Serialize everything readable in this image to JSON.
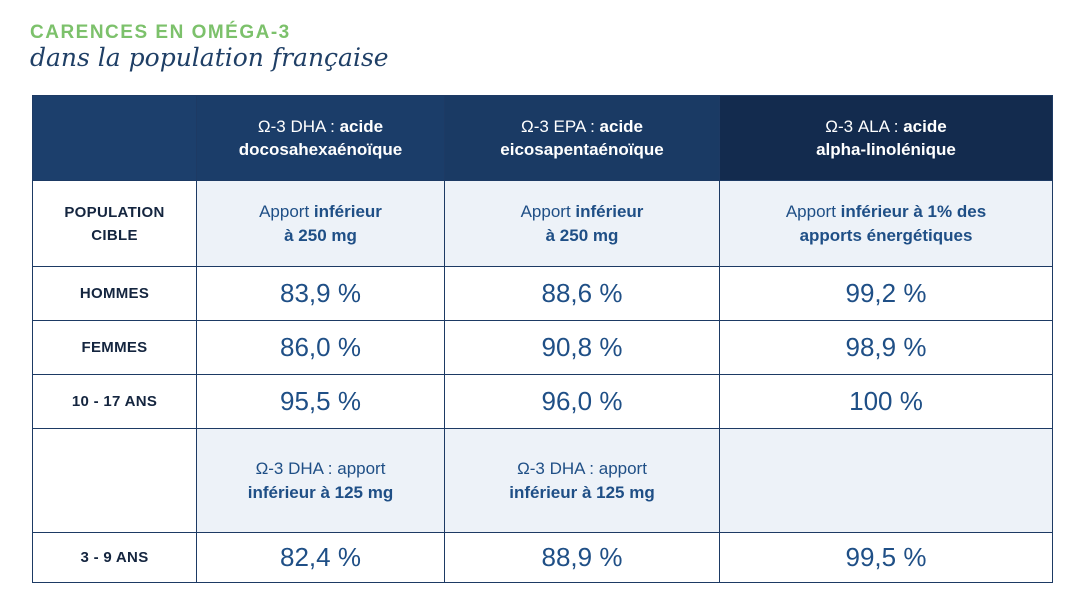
{
  "heading": {
    "title": "CARENCES EN OMÉGA-3",
    "subtitle": "dans la population française"
  },
  "columns": [
    {
      "prefix": "Ω-3 DHA : ",
      "bold1": "acide",
      "line2": "docosahexaénoïque"
    },
    {
      "prefix": "Ω-3 EPA : ",
      "bold1": "acide",
      "line2": "eicosapentaénoïque"
    },
    {
      "prefix": "Ω-3 ALA : ",
      "bold1": "acide",
      "line2": "alpha-linolénique"
    }
  ],
  "target_row": {
    "label_line1": "POPULATION",
    "label_line2": "CIBLE",
    "cells": [
      {
        "normal": "Apport ",
        "bold": "inférieur",
        "line2": "à 250 mg"
      },
      {
        "normal": "Apport ",
        "bold": "inférieur",
        "line2": "à 250 mg"
      },
      {
        "normal": "Apport ",
        "bold": "inférieur à 1% des",
        "line2": "apports énergétiques"
      }
    ]
  },
  "rows": [
    {
      "label": "HOMMES",
      "values": [
        "83,9 %",
        "88,6 %",
        "99,2 %"
      ]
    },
    {
      "label": "FEMMES",
      "values": [
        "86,0 %",
        "90,8 %",
        "98,9 %"
      ]
    },
    {
      "label": "10 - 17 ANS",
      "values": [
        "95,5 %",
        "96,0 %",
        "100 %"
      ]
    }
  ],
  "child_threshold": {
    "cells": [
      {
        "normal": "Ω-3 DHA : apport",
        "bold": "inférieur à 125 mg"
      },
      {
        "normal": "Ω-3 DHA : apport",
        "bold": "inférieur à 125 mg"
      }
    ]
  },
  "child_row": {
    "label": "3 - 9  ANS",
    "values": [
      "82,4 %",
      "88,9 %",
      "99,5 %"
    ]
  },
  "colors": {
    "header_blue": "#1c3f6c",
    "header_dark": "#132b4e",
    "green_title": "#7cc16b",
    "value_blue": "#1f4f86",
    "light_cell": "#edf2f8"
  }
}
